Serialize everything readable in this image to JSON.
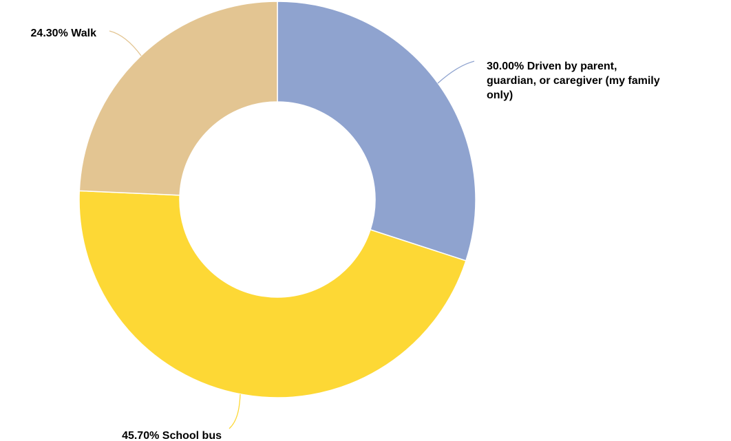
{
  "chart_data": {
    "type": "pie",
    "donut": true,
    "title": "",
    "slices": [
      {
        "key": "driven",
        "label": "Driven by parent, guardian, or caregiver (my family only)",
        "value": 30.0,
        "value_label": "30.00%",
        "color": "#8FA3CF",
        "label_lines": [
          "30.00% Driven by parent,",
          "guardian, or caregiver (my family",
          "only)"
        ]
      },
      {
        "key": "school-bus",
        "label": "School bus",
        "value": 45.7,
        "value_label": "45.70%",
        "color": "#FDD835",
        "label_lines": [
          "45.70% School bus"
        ]
      },
      {
        "key": "walk",
        "label": "Walk",
        "value": 24.3,
        "value_label": "24.30%",
        "color": "#E3C592",
        "label_lines": [
          "24.30% Walk"
        ]
      }
    ]
  }
}
